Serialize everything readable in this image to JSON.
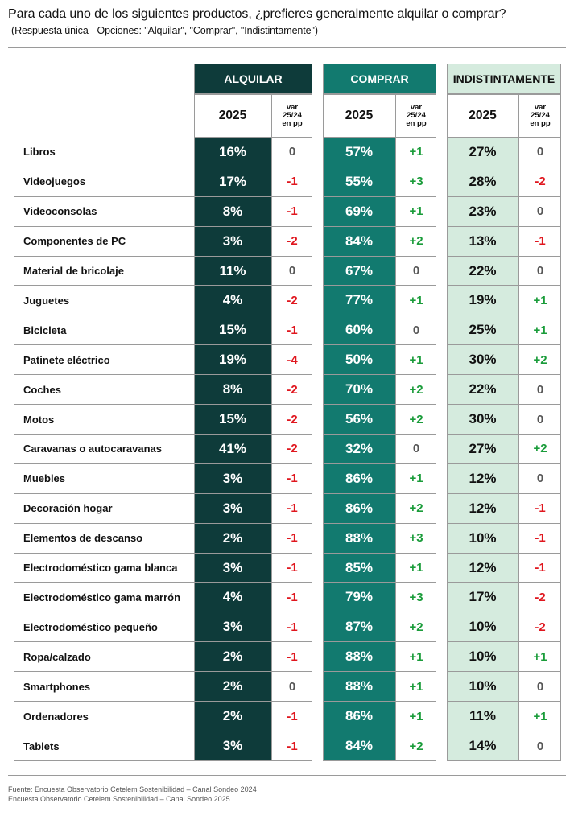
{
  "title": "Para cada uno de los siguientes productos, ¿prefieres generalmente alquilar o comprar?",
  "subtitle": "(Respuesta única - Opciones: \"Alquilar\", \"Comprar\", \"Indistintamente\")",
  "colors": {
    "alquilar_bg": "#0e3b3a",
    "comprar_bg": "#127a6f",
    "indistintamente_bg": "#d5ebde",
    "positive": "#1a9c3a",
    "negative": "#e0161e",
    "neutral": "#555555",
    "grid": "#9a9a9a"
  },
  "chart_data": {
    "type": "table",
    "title": "Para cada uno de los siguientes productos, ¿prefieres generalmente alquilar o comprar?",
    "subtitle": "(Respuesta única - Opciones: \"Alquilar\", \"Comprar\", \"Indistintamente\")",
    "groups": [
      "ALQUILAR",
      "COMPRAR",
      "INDISTINTAMENTE"
    ],
    "subheaders": {
      "year": "2025",
      "var": [
        "var",
        "25/24",
        "en pp"
      ]
    },
    "rows": [
      {
        "product": "Libros",
        "alquilar": "16%",
        "alquilar_var": "0",
        "comprar": "57%",
        "comprar_var": "+1",
        "indistintamente": "27%",
        "indistintamente_var": "0"
      },
      {
        "product": "Videojuegos",
        "alquilar": "17%",
        "alquilar_var": "-1",
        "comprar": "55%",
        "comprar_var": "+3",
        "indistintamente": "28%",
        "indistintamente_var": "-2"
      },
      {
        "product": "Videoconsolas",
        "alquilar": "8%",
        "alquilar_var": "-1",
        "comprar": "69%",
        "comprar_var": "+1",
        "indistintamente": "23%",
        "indistintamente_var": "0"
      },
      {
        "product": "Componentes de PC",
        "alquilar": "3%",
        "alquilar_var": "-2",
        "comprar": "84%",
        "comprar_var": "+2",
        "indistintamente": "13%",
        "indistintamente_var": "-1"
      },
      {
        "product": "Material de bricolaje",
        "alquilar": "11%",
        "alquilar_var": "0",
        "comprar": "67%",
        "comprar_var": "0",
        "indistintamente": "22%",
        "indistintamente_var": "0"
      },
      {
        "product": "Juguetes",
        "alquilar": "4%",
        "alquilar_var": "-2",
        "comprar": "77%",
        "comprar_var": "+1",
        "indistintamente": "19%",
        "indistintamente_var": "+1"
      },
      {
        "product": "Bicicleta",
        "alquilar": "15%",
        "alquilar_var": "-1",
        "comprar": "60%",
        "comprar_var": "0",
        "indistintamente": "25%",
        "indistintamente_var": "+1"
      },
      {
        "product": "Patinete eléctrico",
        "alquilar": "19%",
        "alquilar_var": "-4",
        "comprar": "50%",
        "comprar_var": "+1",
        "indistintamente": "30%",
        "indistintamente_var": "+2"
      },
      {
        "product": "Coches",
        "alquilar": "8%",
        "alquilar_var": "-2",
        "comprar": "70%",
        "comprar_var": "+2",
        "indistintamente": "22%",
        "indistintamente_var": "0"
      },
      {
        "product": "Motos",
        "alquilar": "15%",
        "alquilar_var": "-2",
        "comprar": "56%",
        "comprar_var": "+2",
        "indistintamente": "30%",
        "indistintamente_var": "0"
      },
      {
        "product": "Caravanas o autocaravanas",
        "alquilar": "41%",
        "alquilar_var": "-2",
        "comprar": "32%",
        "comprar_var": "0",
        "indistintamente": "27%",
        "indistintamente_var": "+2"
      },
      {
        "product": "Muebles",
        "alquilar": "3%",
        "alquilar_var": "-1",
        "comprar": "86%",
        "comprar_var": "+1",
        "indistintamente": "12%",
        "indistintamente_var": "0"
      },
      {
        "product": "Decoración hogar",
        "alquilar": "3%",
        "alquilar_var": "-1",
        "comprar": "86%",
        "comprar_var": "+2",
        "indistintamente": "12%",
        "indistintamente_var": "-1"
      },
      {
        "product": "Elementos de descanso",
        "alquilar": "2%",
        "alquilar_var": "-1",
        "comprar": "88%",
        "comprar_var": "+3",
        "indistintamente": "10%",
        "indistintamente_var": "-1"
      },
      {
        "product": "Electrodoméstico gama blanca",
        "alquilar": "3%",
        "alquilar_var": "-1",
        "comprar": "85%",
        "comprar_var": "+1",
        "indistintamente": "12%",
        "indistintamente_var": "-1"
      },
      {
        "product": "Electrodoméstico gama marrón",
        "alquilar": "4%",
        "alquilar_var": "-1",
        "comprar": "79%",
        "comprar_var": "+3",
        "indistintamente": "17%",
        "indistintamente_var": "-2"
      },
      {
        "product": "Electrodoméstico pequeño",
        "alquilar": "3%",
        "alquilar_var": "-1",
        "comprar": "87%",
        "comprar_var": "+2",
        "indistintamente": "10%",
        "indistintamente_var": "-2"
      },
      {
        "product": "Ropa/calzado",
        "alquilar": "2%",
        "alquilar_var": "-1",
        "comprar": "88%",
        "comprar_var": "+1",
        "indistintamente": "10%",
        "indistintamente_var": "+1"
      },
      {
        "product": "Smartphones",
        "alquilar": "2%",
        "alquilar_var": "0",
        "comprar": "88%",
        "comprar_var": "+1",
        "indistintamente": "10%",
        "indistintamente_var": "0"
      },
      {
        "product": "Ordenadores",
        "alquilar": "2%",
        "alquilar_var": "-1",
        "comprar": "86%",
        "comprar_var": "+1",
        "indistintamente": "11%",
        "indistintamente_var": "+1"
      },
      {
        "product": "Tablets",
        "alquilar": "3%",
        "alquilar_var": "-1",
        "comprar": "84%",
        "comprar_var": "+2",
        "indistintamente": "14%",
        "indistintamente_var": "0"
      }
    ]
  },
  "footer": {
    "line1": "Fuente: Encuesta Observatorio Cetelem Sostenibilidad – Canal Sondeo 2024",
    "line2": "Encuesta Observatorio Cetelem Sostenibilidad – Canal Sondeo 2025"
  }
}
